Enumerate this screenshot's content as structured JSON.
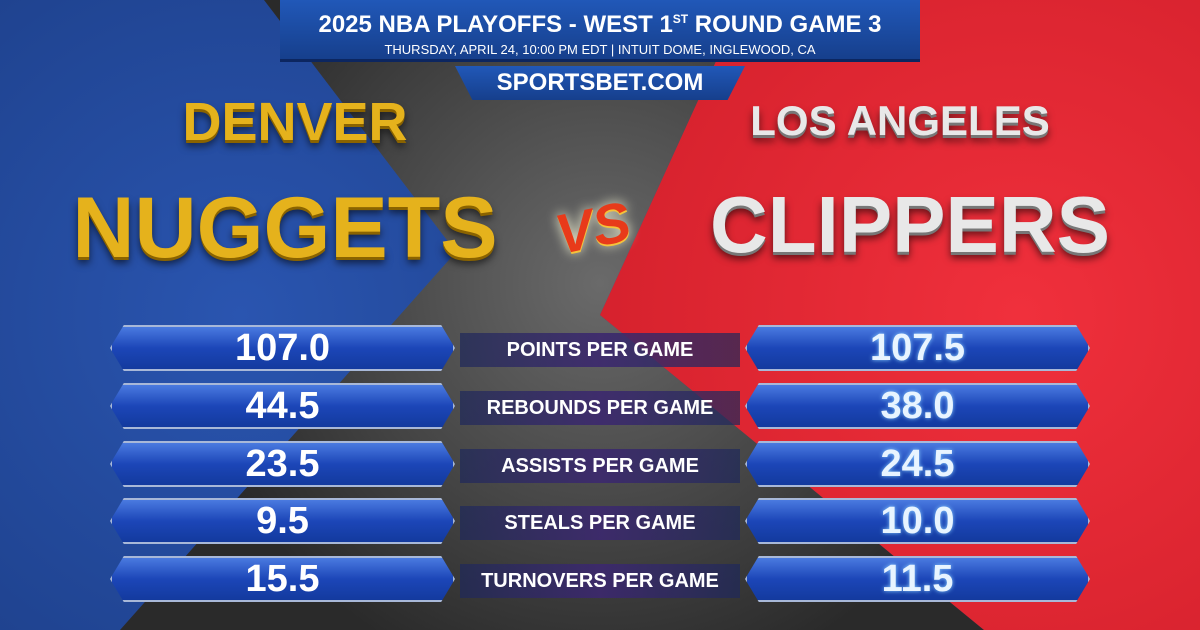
{
  "header": {
    "title_prefix": "2025 NBA PLAYOFFS - WEST 1",
    "title_sup": "ST",
    "title_suffix": " ROUND GAME 3",
    "subtitle": "THURSDAY, APRIL 24, 10:00 PM EDT | INTUIT DOME, INGLEWOOD, CA"
  },
  "brand": "SPORTSBET.COM",
  "teams": {
    "away": {
      "city": "DENVER",
      "name": "NUGGETS",
      "color": "#e5b21c"
    },
    "home": {
      "city": "LOS ANGELES",
      "name": "CLIPPERS",
      "color": "#e8e8e8"
    }
  },
  "vs": "VS",
  "stats": [
    {
      "label": "POINTS PER GAME",
      "away": "107.0",
      "home": "107.5"
    },
    {
      "label": "REBOUNDS PER GAME",
      "away": "44.5",
      "home": "38.0"
    },
    {
      "label": "ASSISTS PER GAME",
      "away": "23.5",
      "home": "24.5"
    },
    {
      "label": "STEALS PER GAME",
      "away": "9.5",
      "home": "10.0"
    },
    {
      "label": "TURNOVERS PER GAME",
      "away": "15.5",
      "home": "11.5"
    }
  ]
}
